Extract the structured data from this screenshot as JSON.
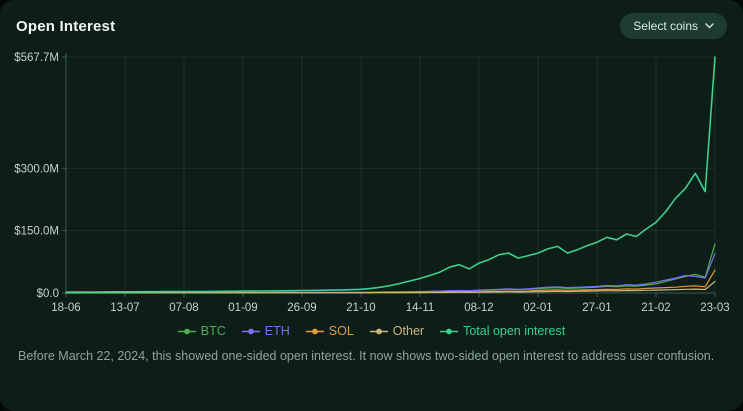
{
  "header": {
    "title": "Open Interest",
    "select_coins_label": "Select coins"
  },
  "footnote": "Before March 22, 2024, this showed one-sided open interest. It now shows two-sided open interest to address user confusion.",
  "chart_data": {
    "type": "line",
    "title": "Open Interest",
    "xlabel": "",
    "ylabel": "",
    "ylim": [
      0,
      567.7
    ],
    "grid": true,
    "legend_position": "bottom",
    "y_ticks": [
      {
        "v": 0,
        "label": "$0.0"
      },
      {
        "v": 150,
        "label": "$150.0M"
      },
      {
        "v": 300,
        "label": "$300.0M"
      },
      {
        "v": 567.7,
        "label": "$567.7M"
      }
    ],
    "x_labels": [
      "18-06",
      "13-07",
      "07-08",
      "01-09",
      "26-09",
      "21-10",
      "14-11",
      "08-12",
      "02-01",
      "27-01",
      "21-02",
      "23-03"
    ],
    "series": [
      {
        "name": "BTC",
        "color": "#4caf50",
        "values": [
          0.5,
          0.5,
          0.5,
          0.6,
          0.6,
          0.6,
          0.7,
          0.7,
          0.7,
          0.7,
          0.8,
          0.8,
          0.8,
          0.8,
          0.8,
          0.9,
          0.9,
          0.9,
          0.9,
          0.9,
          1,
          1,
          1,
          1,
          1,
          1,
          1,
          1.1,
          1.1,
          1.2,
          1.2,
          1.4,
          1.6,
          1.9,
          2.2,
          2.6,
          3,
          3.5,
          4,
          5,
          5.5,
          5,
          6,
          7,
          8,
          9,
          8,
          9,
          10,
          12,
          13,
          11,
          12,
          13,
          14,
          16,
          15,
          17,
          16,
          19,
          22,
          28,
          34,
          40,
          45,
          38,
          118
        ]
      },
      {
        "name": "ETH",
        "color": "#7c6ff0",
        "values": [
          0.8,
          0.8,
          0.8,
          0.8,
          0.9,
          0.9,
          0.9,
          0.9,
          1,
          1,
          1,
          1,
          1,
          1,
          1.1,
          1.1,
          1.1,
          1.2,
          1.2,
          1.2,
          1.3,
          1.3,
          1.3,
          1.4,
          1.4,
          1.4,
          1.5,
          1.5,
          1.6,
          1.7,
          1.8,
          2,
          2.3,
          2.6,
          3,
          3.2,
          3.5,
          4,
          4.5,
          5.5,
          6,
          5.5,
          7,
          8,
          9,
          10,
          9,
          10,
          12,
          14,
          15,
          13,
          14,
          15,
          16,
          18,
          17,
          20,
          19,
          22,
          26,
          31,
          36,
          42,
          40,
          36,
          95
        ]
      },
      {
        "name": "SOL",
        "color": "#e59a3c",
        "values": [
          0.3,
          0.3,
          0.3,
          0.3,
          0.3,
          0.3,
          0.3,
          0.3,
          0.4,
          0.4,
          0.4,
          0.4,
          0.4,
          0.4,
          0.4,
          0.5,
          0.5,
          0.5,
          0.5,
          0.5,
          0.5,
          0.6,
          0.6,
          0.6,
          0.6,
          0.6,
          0.7,
          0.7,
          0.8,
          0.8,
          0.9,
          1,
          1.1,
          1.2,
          1.3,
          1.4,
          1.5,
          1.8,
          2,
          2.4,
          2.6,
          2.4,
          3,
          3.5,
          4,
          4.5,
          4,
          4.5,
          6,
          7,
          7.5,
          6.5,
          7,
          7.5,
          8,
          9,
          8.5,
          10,
          9.5,
          11,
          12,
          13,
          14,
          16,
          17,
          15,
          55
        ]
      },
      {
        "name": "Other",
        "color": "#cdb97e",
        "values": [
          0.2,
          0.2,
          0.2,
          0.2,
          0.2,
          0.2,
          0.2,
          0.2,
          0.2,
          0.3,
          0.3,
          0.3,
          0.3,
          0.3,
          0.3,
          0.3,
          0.3,
          0.3,
          0.3,
          0.3,
          0.4,
          0.4,
          0.4,
          0.4,
          0.4,
          0.4,
          0.4,
          0.5,
          0.5,
          0.5,
          0.5,
          0.6,
          0.7,
          0.8,
          0.9,
          0.9,
          1,
          1.2,
          1.3,
          1.5,
          1.6,
          1.5,
          2,
          2.2,
          2.5,
          2.8,
          2.5,
          2.8,
          3,
          3.5,
          4,
          3.5,
          4,
          4.5,
          5,
          5.5,
          5,
          6,
          5.5,
          6.5,
          7,
          7.5,
          8,
          9,
          9.5,
          8.5,
          28
        ]
      },
      {
        "name": "Total open interest",
        "color": "#3ecf8e",
        "values": [
          2,
          2.2,
          2.4,
          2.5,
          2.6,
          2.8,
          3,
          3,
          3.1,
          3.2,
          3.3,
          3.4,
          3.5,
          3.6,
          3.7,
          3.8,
          4,
          4.2,
          4.5,
          4.6,
          4.8,
          5,
          5.2,
          5.5,
          6,
          6.2,
          6.5,
          7,
          7.5,
          8,
          9,
          11,
          14,
          18,
          23,
          29,
          35,
          42,
          50,
          62,
          68,
          58,
          72,
          80,
          92,
          96,
          84,
          90,
          96,
          106,
          112,
          96,
          104,
          114,
          122,
          134,
          128,
          142,
          136,
          154,
          170,
          196,
          228,
          252,
          288,
          244,
          567.7
        ]
      }
    ]
  }
}
